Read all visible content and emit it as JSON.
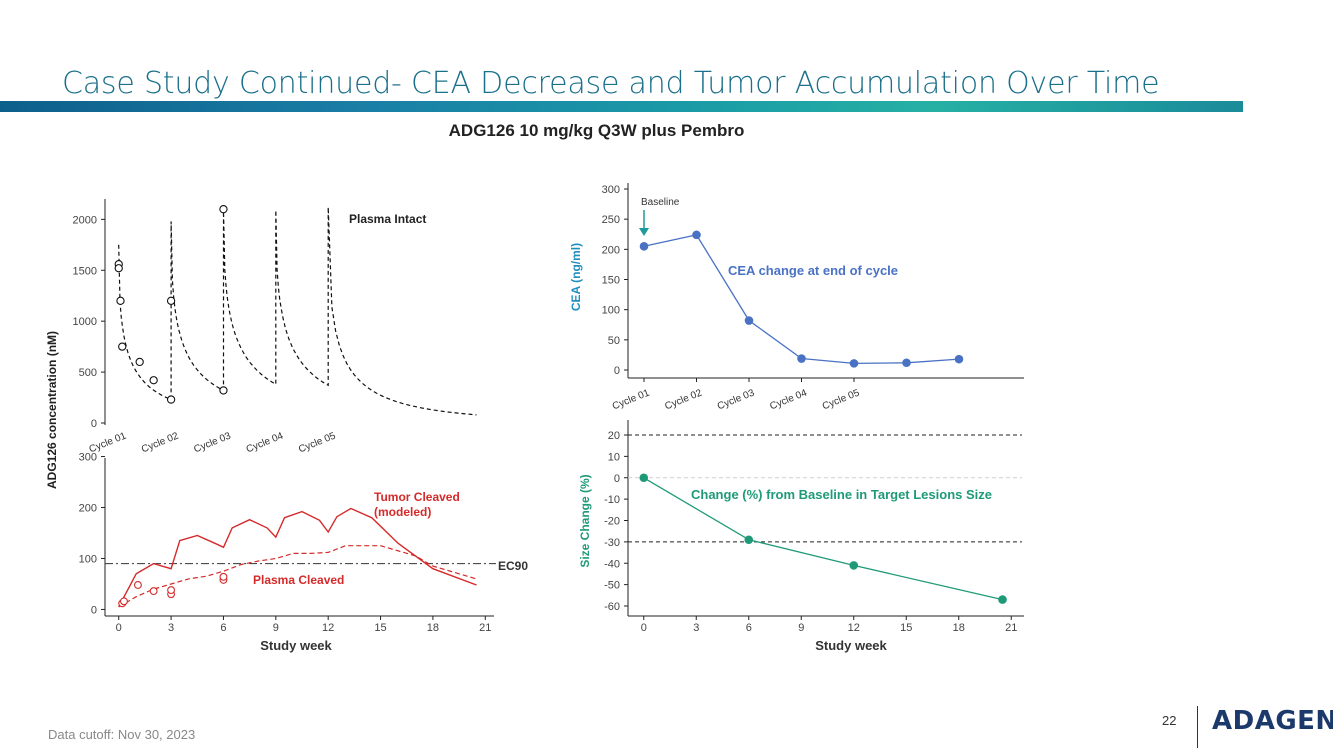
{
  "slide": {
    "title": "Case Study Continued- CEA Decrease and Tumor Accumulation Over Time",
    "subtitle": "ADG126 10 mg/kg Q3W plus Pembro",
    "footer": "Data cutoff: Nov 30, 2023",
    "page_number": "22",
    "logo_text": "ADAGENE"
  },
  "chart_data": [
    {
      "id": "pk",
      "type": "line",
      "shared_ylabel": "ADG126 concentration (nM)",
      "xlabel": "Study week",
      "xticks": [
        "0",
        "3",
        "6",
        "9",
        "12",
        "15",
        "18",
        "21"
      ],
      "xlim": [
        -0.5,
        21.5
      ],
      "cycle_labels": [
        "Cycle 01",
        "Cycle 02",
        "Cycle 03",
        "Cycle 04",
        "Cycle 05"
      ],
      "top_panel": {
        "label": "Plasma Intact",
        "ylim": [
          0,
          2200
        ],
        "yticks": [
          "0",
          "500",
          "1000",
          "1500",
          "2000"
        ],
        "observed": {
          "x": [
            0,
            0,
            0.1,
            0.2,
            1.2,
            2,
            3,
            3,
            6,
            6
          ],
          "y": [
            1560,
            1520,
            1200,
            750,
            600,
            420,
            230,
            1200,
            320,
            2100
          ]
        },
        "model_troughs": [
          [
            3,
            230
          ],
          [
            6,
            320
          ],
          [
            9,
            380
          ],
          [
            12,
            370
          ]
        ],
        "model_peaks": [
          [
            0,
            1750
          ],
          [
            3,
            1980
          ],
          [
            6,
            2080
          ],
          [
            9,
            2090
          ],
          [
            12,
            2120
          ]
        ],
        "model_tail_end": [
          20.5,
          80
        ]
      },
      "bottom_panel": {
        "ylim": [
          -5,
          305
        ],
        "yticks": [
          "0",
          "100",
          "200",
          "300"
        ],
        "ec90_label": "EC90",
        "ec90_value": 90,
        "tumor_label_line1": "Tumor Cleaved",
        "tumor_label_line2": "(modeled)",
        "plasma_label": "Plasma Cleaved",
        "tumor_cleaved": {
          "x": [
            0,
            1,
            2,
            3,
            3.5,
            4.5,
            5.5,
            6,
            6.5,
            7.5,
            8.5,
            9,
            9.5,
            10.5,
            11.5,
            12,
            12.5,
            13.3,
            14.5,
            16,
            18,
            20.5
          ],
          "y": [
            5,
            70,
            90,
            80,
            135,
            145,
            130,
            122,
            160,
            176,
            160,
            142,
            180,
            192,
            175,
            152,
            182,
            198,
            180,
            130,
            80,
            48
          ]
        },
        "plasma_cleaved_model": {
          "x": [
            0,
            1,
            2,
            3,
            4,
            5,
            6,
            7,
            8,
            9,
            10,
            11,
            12,
            13,
            15,
            17,
            18,
            20.5
          ],
          "y": [
            5,
            25,
            40,
            50,
            60,
            65,
            75,
            88,
            95,
            100,
            110,
            110,
            112,
            125,
            125,
            105,
            85,
            60
          ]
        },
        "plasma_cleaved_observed": {
          "x": [
            0.2,
            0.3,
            1.1,
            2,
            3,
            3,
            6,
            6
          ],
          "y": [
            12,
            16,
            48,
            36,
            30,
            38,
            58,
            64
          ]
        }
      }
    },
    {
      "id": "cea",
      "type": "line",
      "ylabel": "CEA (ng/ml)",
      "ylim": [
        -5,
        310
      ],
      "yticks": [
        "0",
        "50",
        "100",
        "150",
        "200",
        "250",
        "300"
      ],
      "categories": [
        "Cycle 01",
        "Cycle 02",
        "Cycle 03",
        "Cycle 04",
        "Cycle 05"
      ],
      "x": [
        0,
        1,
        2,
        3,
        4,
        5,
        6
      ],
      "values": [
        205,
        224,
        82,
        19,
        11,
        12,
        18
      ],
      "series_label": "CEA change at end of cycle",
      "baseline_label": "Baseline",
      "color": "#4a72c4"
    },
    {
      "id": "size",
      "type": "line",
      "ylabel": "Size Change (%)",
      "xlabel": "Study week",
      "ylim": [
        -62,
        22
      ],
      "yticks": [
        "20",
        "10",
        "0",
        "-10",
        "-20",
        "-30",
        "-40",
        "-50",
        "-60"
      ],
      "xticks": [
        "0",
        "3",
        "6",
        "9",
        "12",
        "15",
        "18",
        "21"
      ],
      "xlim": [
        -0.5,
        21.5
      ],
      "x": [
        0,
        6,
        12,
        20.5
      ],
      "values": [
        0,
        -29,
        -41,
        -57
      ],
      "reference_lines": [
        20,
        -30
      ],
      "series_label": "Change (%) from Baseline in Target Lesions Size",
      "color": "#1f9a78"
    }
  ]
}
